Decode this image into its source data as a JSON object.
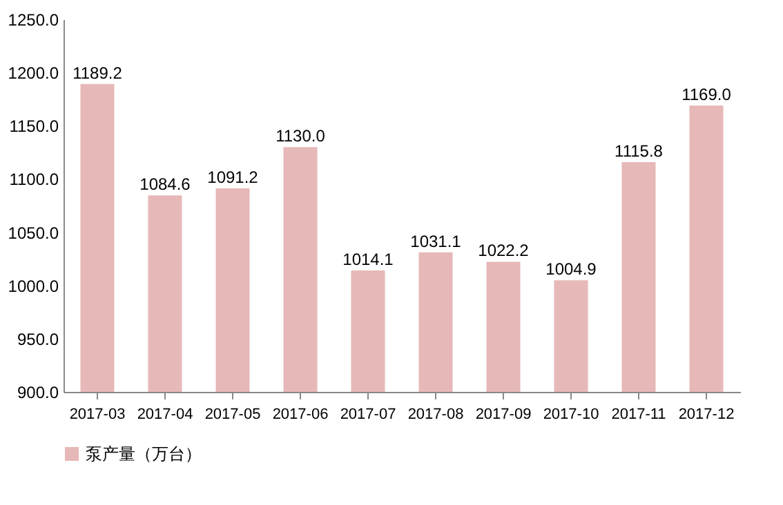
{
  "chart_data": {
    "type": "bar",
    "categories": [
      "2017-03",
      "2017-04",
      "2017-05",
      "2017-06",
      "2017-07",
      "2017-08",
      "2017-09",
      "2017-10",
      "2017-11",
      "2017-12"
    ],
    "series": [
      {
        "name": "泵产量（万台）",
        "color": "#e6b8b7",
        "values": [
          1189.2,
          1084.6,
          1091.2,
          1130.0,
          1014.1,
          1031.1,
          1022.2,
          1004.9,
          1115.8,
          1169.0
        ],
        "value_labels": [
          "1189.2",
          "1084.6",
          "1091.2",
          "1130.0",
          "1014.1",
          "1031.1",
          "1022.2",
          "1004.9",
          "1115.8",
          "1169.0"
        ]
      }
    ],
    "ylim": [
      900,
      1250
    ],
    "yticks": [
      {
        "value": 900,
        "label": "900.0"
      },
      {
        "value": 950,
        "label": "950.0"
      },
      {
        "value": 1000,
        "label": "1000.0"
      },
      {
        "value": 1050,
        "label": "1050.0"
      },
      {
        "value": 1100,
        "label": "1100.0"
      },
      {
        "value": 1150,
        "label": "1150.0"
      },
      {
        "value": 1200,
        "label": "1200.0"
      },
      {
        "value": 1250,
        "label": "1250.0"
      }
    ],
    "grid": false,
    "legend": "bottom"
  }
}
